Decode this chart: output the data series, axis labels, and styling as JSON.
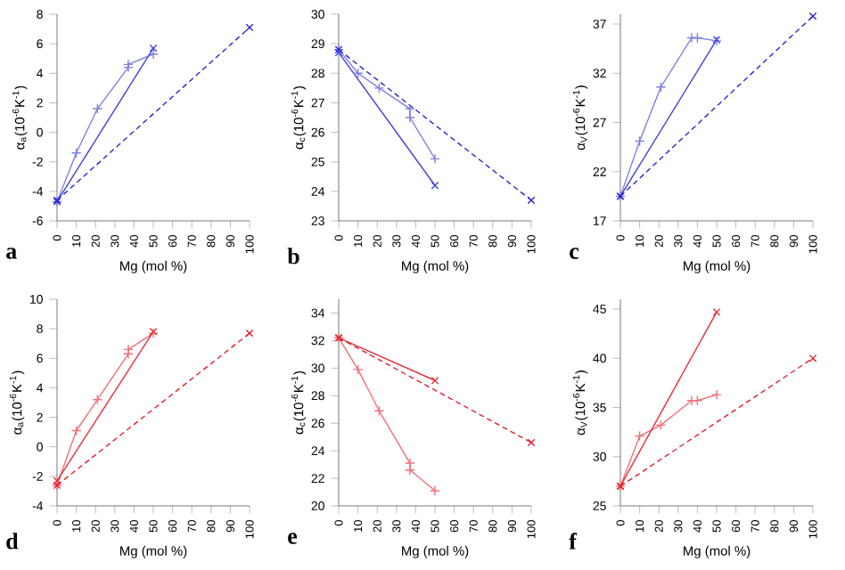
{
  "chart_data": [
    {
      "type": "line",
      "xlabel": "Mg (mol %)",
      "ylabel": "α$_{a}$(10$^{-6}$K$^{-1}$)",
      "annotations": [
        "a"
      ],
      "xlim": [
        0,
        100
      ],
      "xticks": [
        0,
        10,
        20,
        30,
        40,
        50,
        60,
        70,
        80,
        90,
        100
      ],
      "ylim": [
        -6,
        8
      ],
      "yticks": [
        -6,
        -4,
        -2,
        0,
        2,
        4,
        6,
        8
      ],
      "series": [
        {
          "color": "#8080e0",
          "x": [
            0,
            10,
            21,
            37,
            37,
            50
          ],
          "values": [
            -4.7,
            -1.4,
            1.6,
            4.4,
            4.6,
            5.3
          ],
          "marker": "plus",
          "line_style": "solid"
        },
        {
          "color": "#4040d8",
          "x": [
            0,
            50
          ],
          "values": [
            -4.7,
            5.7
          ],
          "marker": "cross",
          "line_style": "solid"
        },
        {
          "color": "#2828c8",
          "x": [
            0,
            100
          ],
          "values": [
            -4.6,
            7.1
          ],
          "marker": "cross",
          "line_style": "dashed"
        }
      ]
    },
    {
      "type": "line",
      "xlabel": "Mg (mol %)",
      "ylabel": "α$_{c}$(10$^{-6}$K$^{-1}$)",
      "annotations": [
        "b"
      ],
      "xlim": [
        0,
        100
      ],
      "xticks": [
        0,
        10,
        20,
        30,
        40,
        50,
        60,
        70,
        80,
        90,
        100
      ],
      "ylim": [
        23,
        30
      ],
      "yticks": [
        23,
        24,
        25,
        26,
        27,
        28,
        29,
        30
      ],
      "series": [
        {
          "color": "#8080e0",
          "x": [
            0,
            10,
            21,
            37,
            37,
            50
          ],
          "values": [
            28.8,
            28.0,
            27.5,
            26.8,
            26.5,
            25.1
          ],
          "marker": "plus",
          "line_style": "solid"
        },
        {
          "color": "#4040d8",
          "x": [
            0,
            50
          ],
          "values": [
            28.7,
            24.2
          ],
          "marker": "cross",
          "line_style": "solid"
        },
        {
          "color": "#2828c8",
          "x": [
            0,
            100
          ],
          "values": [
            28.8,
            23.7
          ],
          "marker": "cross",
          "line_style": "dashed"
        }
      ]
    },
    {
      "type": "line",
      "xlabel": "Mg (mol %)",
      "ylabel": "α$_{V}$(10$^{-6}$K$^{-1}$)",
      "annotations": [
        "c"
      ],
      "xlim": [
        0,
        100
      ],
      "xticks": [
        0,
        10,
        20,
        30,
        40,
        50,
        60,
        70,
        80,
        90,
        100
      ],
      "ylim": [
        17,
        38
      ],
      "yticks": [
        17,
        22,
        27,
        32,
        37
      ],
      "series": [
        {
          "color": "#8080e0",
          "x": [
            0,
            10,
            21,
            37,
            40,
            50
          ],
          "values": [
            19.5,
            25.1,
            30.6,
            35.6,
            35.6,
            35.3
          ],
          "marker": "plus",
          "line_style": "solid"
        },
        {
          "color": "#4040d8",
          "x": [
            0,
            50
          ],
          "values": [
            19.5,
            35.4
          ],
          "marker": "cross",
          "line_style": "solid"
        },
        {
          "color": "#2828c8",
          "x": [
            0,
            100
          ],
          "values": [
            19.5,
            37.8
          ],
          "marker": "cross",
          "line_style": "dashed"
        }
      ]
    },
    {
      "type": "line",
      "xlabel": "Mg (mol %)",
      "ylabel": "α$_{a}$(10$^{-6}$K$^{-1}$)",
      "annotations": [
        "d"
      ],
      "xlim": [
        0,
        100
      ],
      "xticks": [
        0,
        10,
        20,
        30,
        40,
        50,
        60,
        70,
        80,
        90,
        100
      ],
      "ylim": [
        -4,
        10
      ],
      "yticks": [
        -4,
        -2,
        0,
        2,
        4,
        6,
        8,
        10
      ],
      "series": [
        {
          "color": "#f07078",
          "x": [
            0,
            10,
            21,
            37,
            37,
            50
          ],
          "values": [
            -2.6,
            1.1,
            3.2,
            6.3,
            6.6,
            7.7
          ],
          "marker": "plus",
          "line_style": "solid"
        },
        {
          "color": "#e8303a",
          "x": [
            0,
            50
          ],
          "values": [
            -2.3,
            7.8
          ],
          "marker": "cross",
          "line_style": "solid"
        },
        {
          "color": "#e02030",
          "x": [
            0,
            100
          ],
          "values": [
            -2.6,
            7.7
          ],
          "marker": "cross",
          "line_style": "dashed"
        }
      ]
    },
    {
      "type": "line",
      "xlabel": "Mg (mol %)",
      "ylabel": "α$_{c}$(10$^{-6}$K$^{-1}$)",
      "annotations": [
        "e"
      ],
      "xlim": [
        0,
        100
      ],
      "xticks": [
        0,
        10,
        20,
        30,
        40,
        50,
        60,
        70,
        80,
        90,
        100
      ],
      "ylim": [
        20,
        35
      ],
      "yticks": [
        20,
        22,
        24,
        26,
        28,
        30,
        32,
        34
      ],
      "series": [
        {
          "color": "#f07078",
          "x": [
            0,
            10,
            21,
            37,
            37,
            50
          ],
          "values": [
            32.2,
            29.9,
            26.9,
            23.1,
            22.6,
            21.1
          ],
          "marker": "plus",
          "line_style": "solid"
        },
        {
          "color": "#e8303a",
          "x": [
            0,
            50
          ],
          "values": [
            32.2,
            29.1
          ],
          "marker": "cross",
          "line_style": "solid"
        },
        {
          "color": "#e02030",
          "x": [
            0,
            100
          ],
          "values": [
            32.2,
            24.6
          ],
          "marker": "cross",
          "line_style": "dashed"
        }
      ]
    },
    {
      "type": "line",
      "xlabel": "Mg (mol %)",
      "ylabel": "α$_{V}$(10$^{-6}$K$^{-1}$)",
      "annotations": [
        "f"
      ],
      "xlim": [
        0,
        100
      ],
      "xticks": [
        0,
        10,
        20,
        30,
        40,
        50,
        60,
        70,
        80,
        90,
        100
      ],
      "ylim": [
        25,
        46
      ],
      "yticks": [
        25,
        30,
        35,
        40,
        45
      ],
      "series": [
        {
          "color": "#f07078",
          "x": [
            0,
            10,
            21,
            37,
            40,
            50
          ],
          "values": [
            27.0,
            32.1,
            33.2,
            35.7,
            35.7,
            36.3
          ],
          "marker": "plus",
          "line_style": "solid"
        },
        {
          "color": "#e8303a",
          "x": [
            0,
            50
          ],
          "values": [
            27.0,
            44.7
          ],
          "marker": "cross",
          "line_style": "solid"
        },
        {
          "color": "#e02030",
          "x": [
            0,
            100
          ],
          "values": [
            27.0,
            40.0
          ],
          "marker": "cross",
          "line_style": "dashed"
        }
      ]
    }
  ]
}
